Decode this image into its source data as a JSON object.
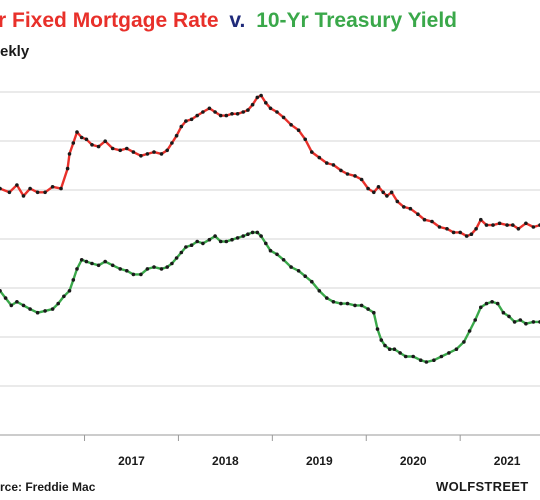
{
  "title": {
    "part1": "r Fixed Mortgage Rate",
    "part2": "v.",
    "part3": "10-Yr Treasury Yield"
  },
  "subtitle": "ekly",
  "source": "rce: Freddie Mac",
  "brand": "WOLFSTREET",
  "chart_data": {
    "type": "line",
    "title": "r Fixed Mortgage Rate v. 10-Yr Treasury Yield",
    "x_tick_labels": [
      "2017",
      "2018",
      "2019",
      "2020",
      "2021"
    ],
    "x_range": [
      2016.1,
      2021.85
    ],
    "y_range": [
      0,
      1
    ],
    "y_scale_note": "vertical axis values cropped out of view; y values are relative heights",
    "grid": "horizontal",
    "series": [
      {
        "color": "#e8302a",
        "marker_color": "#1a1a1a",
        "x": [
          2016.1,
          2016.2,
          2016.28,
          2016.35,
          2016.42,
          2016.5,
          2016.58,
          2016.66,
          2016.75,
          2016.82,
          2016.84,
          2016.88,
          2016.92,
          2016.97,
          2017.02,
          2017.08,
          2017.15,
          2017.22,
          2017.3,
          2017.38,
          2017.45,
          2017.52,
          2017.6,
          2017.67,
          2017.74,
          2017.82,
          2017.88,
          2017.93,
          2017.98,
          2018.03,
          2018.08,
          2018.14,
          2018.2,
          2018.26,
          2018.33,
          2018.39,
          2018.45,
          2018.51,
          2018.57,
          2018.63,
          2018.69,
          2018.74,
          2018.79,
          2018.84,
          2018.88,
          2018.93,
          2018.98,
          2019.05,
          2019.12,
          2019.2,
          2019.28,
          2019.35,
          2019.42,
          2019.5,
          2019.58,
          2019.65,
          2019.73,
          2019.8,
          2019.88,
          2019.95,
          2020.02,
          2020.08,
          2020.13,
          2020.18,
          2020.22,
          2020.27,
          2020.33,
          2020.4,
          2020.47,
          2020.55,
          2020.62,
          2020.7,
          2020.78,
          2020.86,
          2020.93,
          2021.0,
          2021.07,
          2021.12,
          2021.17,
          2021.22,
          2021.28,
          2021.35,
          2021.42,
          2021.5,
          2021.56,
          2021.62,
          2021.7,
          2021.78,
          2021.85
        ],
        "y": [
          0.675,
          0.665,
          0.685,
          0.655,
          0.675,
          0.665,
          0.665,
          0.68,
          0.675,
          0.73,
          0.77,
          0.8,
          0.83,
          0.815,
          0.81,
          0.795,
          0.79,
          0.805,
          0.785,
          0.78,
          0.785,
          0.775,
          0.765,
          0.77,
          0.775,
          0.77,
          0.78,
          0.8,
          0.82,
          0.845,
          0.86,
          0.865,
          0.875,
          0.885,
          0.895,
          0.885,
          0.875,
          0.875,
          0.88,
          0.88,
          0.885,
          0.89,
          0.905,
          0.925,
          0.93,
          0.91,
          0.895,
          0.885,
          0.87,
          0.85,
          0.835,
          0.81,
          0.775,
          0.76,
          0.745,
          0.74,
          0.725,
          0.715,
          0.71,
          0.7,
          0.675,
          0.665,
          0.68,
          0.665,
          0.655,
          0.665,
          0.64,
          0.625,
          0.62,
          0.605,
          0.59,
          0.585,
          0.57,
          0.565,
          0.555,
          0.555,
          0.545,
          0.55,
          0.565,
          0.59,
          0.575,
          0.575,
          0.58,
          0.575,
          0.575,
          0.565,
          0.58,
          0.57,
          0.575
        ]
      },
      {
        "color": "#3aa84a",
        "marker_color": "#1a1a1a",
        "x": [
          2016.1,
          2016.16,
          2016.22,
          2016.28,
          2016.35,
          2016.42,
          2016.5,
          2016.58,
          2016.66,
          2016.72,
          2016.78,
          2016.84,
          2016.88,
          2016.92,
          2016.97,
          2017.02,
          2017.08,
          2017.15,
          2017.22,
          2017.3,
          2017.38,
          2017.45,
          2017.52,
          2017.6,
          2017.67,
          2017.74,
          2017.82,
          2017.88,
          2017.93,
          2017.98,
          2018.03,
          2018.08,
          2018.14,
          2018.2,
          2018.26,
          2018.33,
          2018.39,
          2018.45,
          2018.51,
          2018.57,
          2018.63,
          2018.69,
          2018.74,
          2018.79,
          2018.84,
          2018.88,
          2018.93,
          2018.98,
          2019.05,
          2019.12,
          2019.2,
          2019.28,
          2019.35,
          2019.42,
          2019.5,
          2019.58,
          2019.65,
          2019.73,
          2019.8,
          2019.88,
          2019.95,
          2020.02,
          2020.08,
          2020.12,
          2020.16,
          2020.2,
          2020.25,
          2020.3,
          2020.36,
          2020.42,
          2020.5,
          2020.58,
          2020.64,
          2020.72,
          2020.8,
          2020.88,
          2020.96,
          2021.04,
          2021.1,
          2021.16,
          2021.22,
          2021.28,
          2021.34,
          2021.4,
          2021.46,
          2021.52,
          2021.58,
          2021.64,
          2021.7,
          2021.78,
          2021.85
        ],
        "y": [
          0.395,
          0.375,
          0.355,
          0.365,
          0.355,
          0.345,
          0.335,
          0.34,
          0.345,
          0.36,
          0.38,
          0.395,
          0.425,
          0.455,
          0.48,
          0.475,
          0.47,
          0.465,
          0.475,
          0.465,
          0.455,
          0.45,
          0.44,
          0.44,
          0.455,
          0.46,
          0.455,
          0.46,
          0.47,
          0.485,
          0.5,
          0.515,
          0.52,
          0.53,
          0.525,
          0.535,
          0.545,
          0.53,
          0.53,
          0.535,
          0.54,
          0.545,
          0.55,
          0.555,
          0.555,
          0.545,
          0.525,
          0.505,
          0.495,
          0.48,
          0.46,
          0.45,
          0.435,
          0.42,
          0.395,
          0.375,
          0.365,
          0.36,
          0.36,
          0.355,
          0.355,
          0.345,
          0.335,
          0.29,
          0.26,
          0.245,
          0.235,
          0.235,
          0.225,
          0.215,
          0.215,
          0.205,
          0.2,
          0.205,
          0.215,
          0.225,
          0.235,
          0.255,
          0.285,
          0.315,
          0.35,
          0.36,
          0.365,
          0.36,
          0.335,
          0.325,
          0.31,
          0.315,
          0.305,
          0.31,
          0.31
        ]
      }
    ]
  }
}
